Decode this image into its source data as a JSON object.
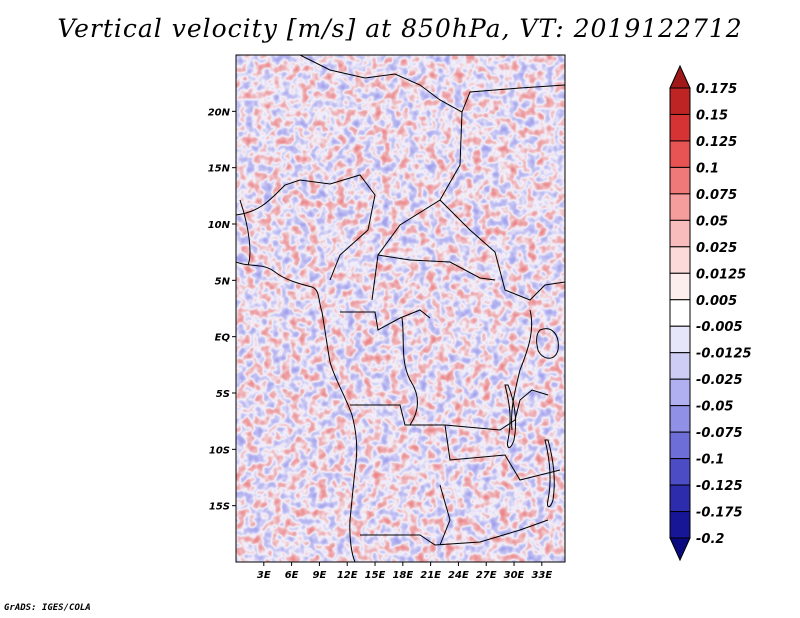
{
  "title": "Vertical velocity [m/s] at 850hPa, VT: 2019122712",
  "credit": "GrADS: IGES/COLA",
  "map": {
    "lon_range": [
      0,
      35.5
    ],
    "lat_range": [
      -20,
      25
    ],
    "lat_ticks": [
      {
        "value": 20,
        "label": "20N"
      },
      {
        "value": 15,
        "label": "15N"
      },
      {
        "value": 10,
        "label": "10N"
      },
      {
        "value": 5,
        "label": "5N"
      },
      {
        "value": 0,
        "label": "EQ"
      },
      {
        "value": -5,
        "label": "5S"
      },
      {
        "value": -10,
        "label": "10S"
      },
      {
        "value": -15,
        "label": "15S"
      }
    ],
    "lon_ticks": [
      {
        "value": 3,
        "label": "3E"
      },
      {
        "value": 6,
        "label": "6E"
      },
      {
        "value": 9,
        "label": "9E"
      },
      {
        "value": 12,
        "label": "12E"
      },
      {
        "value": 15,
        "label": "15E"
      },
      {
        "value": 18,
        "label": "18E"
      },
      {
        "value": 21,
        "label": "21E"
      },
      {
        "value": 24,
        "label": "24E"
      },
      {
        "value": 27,
        "label": "27E"
      },
      {
        "value": 30,
        "label": "30E"
      },
      {
        "value": 33,
        "label": "33E"
      }
    ]
  },
  "colorbar": {
    "labels": [
      "0.175",
      "0.15",
      "0.125",
      "0.1",
      "0.075",
      "0.05",
      "0.025",
      "0.0125",
      "0.005",
      "-0.005",
      "-0.0125",
      "-0.025",
      "-0.05",
      "-0.075",
      "-0.1",
      "-0.125",
      "-0.175",
      "-0.2"
    ],
    "colors": [
      "#a01818",
      "#be2424",
      "#d63434",
      "#e85454",
      "#ef7878",
      "#f59c9c",
      "#f9bcbc",
      "#fcdada",
      "#fdeeee",
      "#ffffff",
      "#e6e6fb",
      "#cdcdf6",
      "#b0b0f0",
      "#9090e6",
      "#6e6ed8",
      "#4c4cc4",
      "#2c2cac",
      "#161696",
      "#0a0a80"
    ]
  }
}
